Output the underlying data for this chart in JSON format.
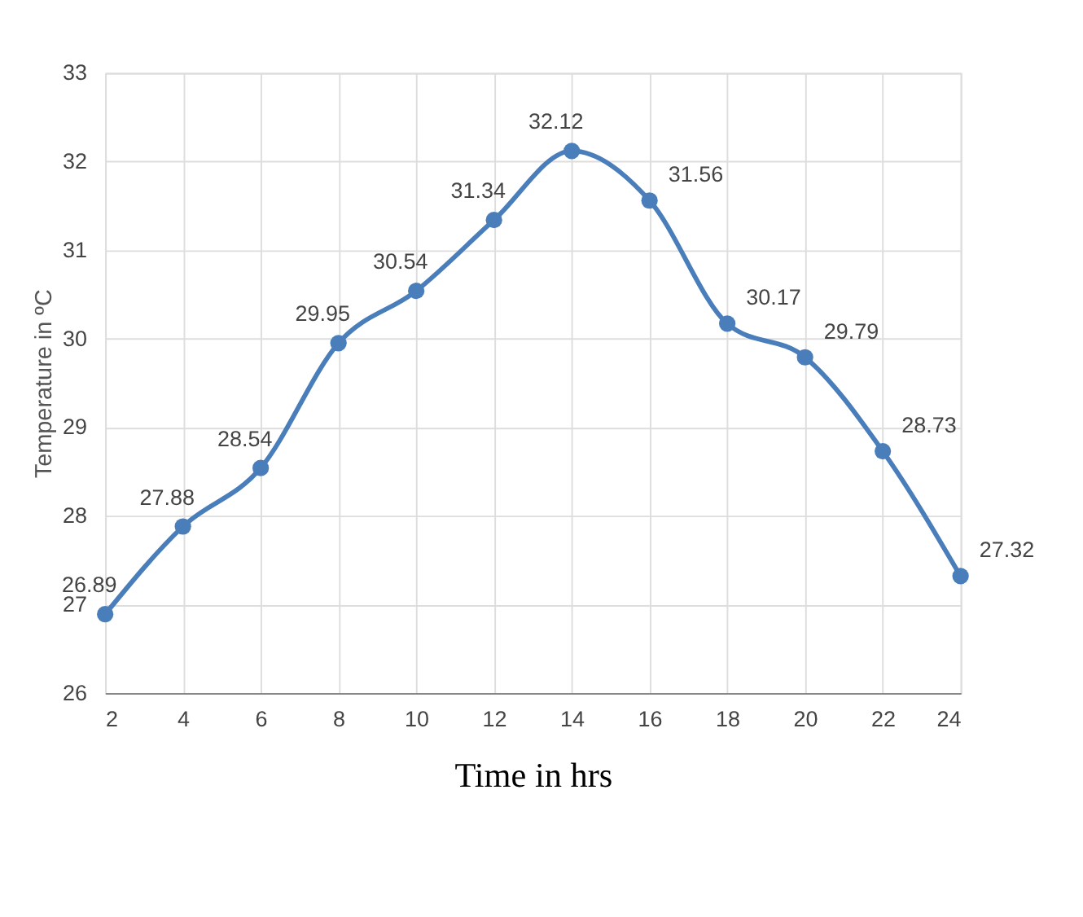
{
  "chart_data": {
    "type": "line",
    "xlabel": "Time in hrs",
    "ylabel": "Temperature in ºC",
    "x": [
      2,
      4,
      6,
      8,
      10,
      12,
      14,
      16,
      18,
      20,
      22,
      24
    ],
    "series": [
      {
        "color": "#4a7ebb",
        "values": [
          26.89,
          27.88,
          28.54,
          29.95,
          30.54,
          31.34,
          32.12,
          31.56,
          30.17,
          29.79,
          28.73,
          27.32
        ]
      }
    ],
    "xlim": [
      2,
      24
    ],
    "xticks": [
      2,
      4,
      6,
      8,
      10,
      12,
      14,
      16,
      18,
      20,
      22,
      24
    ],
    "ylim": [
      26,
      33
    ],
    "yticks": [
      26,
      27,
      28,
      29,
      30,
      31,
      32,
      33
    ],
    "grid": true,
    "marker": "circle",
    "line_style": "solid",
    "data_labels": true
  }
}
